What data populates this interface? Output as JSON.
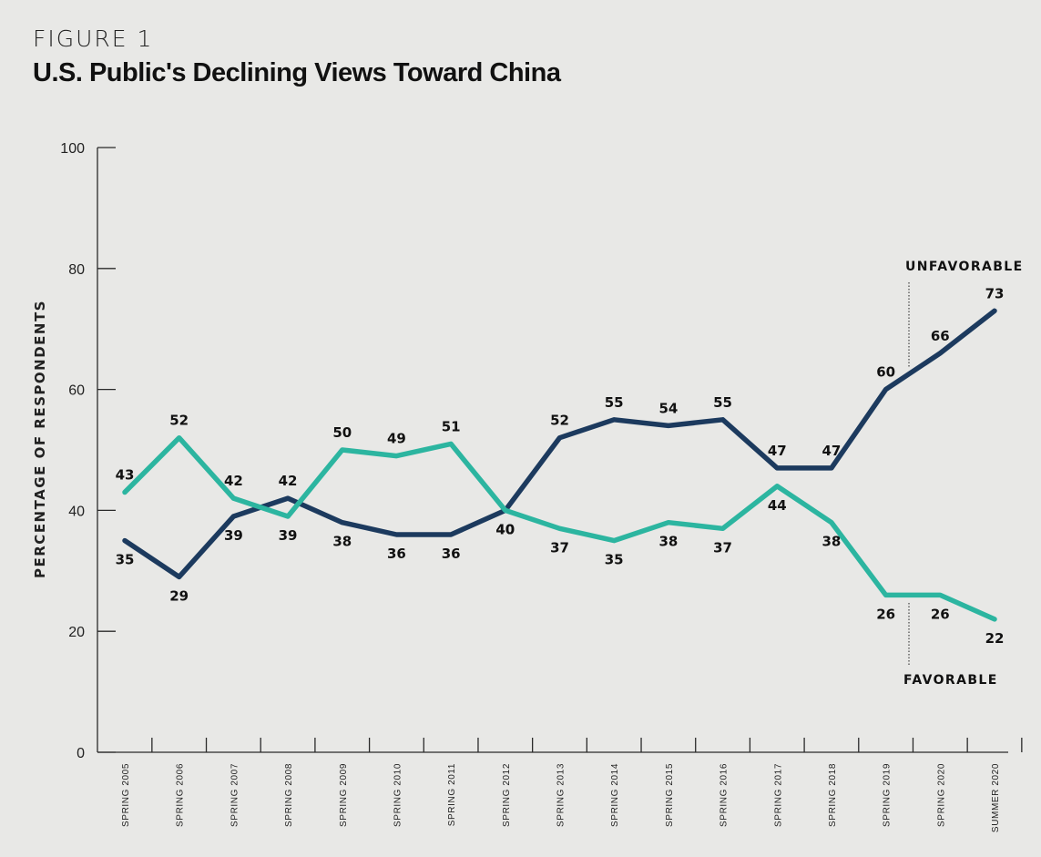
{
  "figure_label": "FIGURE 1",
  "chart_data": {
    "type": "line",
    "title": "U.S. Public's Declining Views Toward China",
    "ylabel": "PERCENTAGE OF RESPONDENTS",
    "xlabel": "",
    "ylim": [
      0,
      100
    ],
    "yticks": [
      0,
      20,
      40,
      60,
      80,
      100
    ],
    "grid": false,
    "categories": [
      "SPRING 2005",
      "SPRING 2006",
      "SPRING 2007",
      "SPRING 2008",
      "SPRING 2009",
      "SPRING 2010",
      "SPRING 2011",
      "SPRING 2012",
      "SPRING 2013",
      "SPRING 2014",
      "SPRING 2015",
      "SPRING 2016",
      "SPRING 2017",
      "SPRING 2018",
      "SPRING 2019",
      "SPRING 2020",
      "SUMMER 2020"
    ],
    "series": [
      {
        "name": "UNFAVORABLE",
        "color": "#1c3a5e",
        "values": [
          35,
          29,
          39,
          42,
          38,
          36,
          36,
          40,
          52,
          55,
          54,
          55,
          47,
          47,
          60,
          66,
          73
        ],
        "label_position": [
          "below",
          "below",
          "below",
          "above",
          "below",
          "below",
          "below",
          "below",
          "above",
          "above",
          "above",
          "above",
          "above",
          "above",
          "above",
          "above",
          "above"
        ]
      },
      {
        "name": "FAVORABLE",
        "color": "#2cb5a0",
        "values": [
          43,
          52,
          42,
          39,
          50,
          49,
          51,
          40,
          37,
          35,
          38,
          37,
          44,
          38,
          26,
          26,
          22
        ],
        "label_position": [
          "above",
          "above",
          "above",
          "below",
          "above",
          "above",
          "above",
          "below",
          "below",
          "below",
          "below",
          "below",
          "below",
          "below",
          "below",
          "below",
          "below"
        ]
      }
    ]
  }
}
